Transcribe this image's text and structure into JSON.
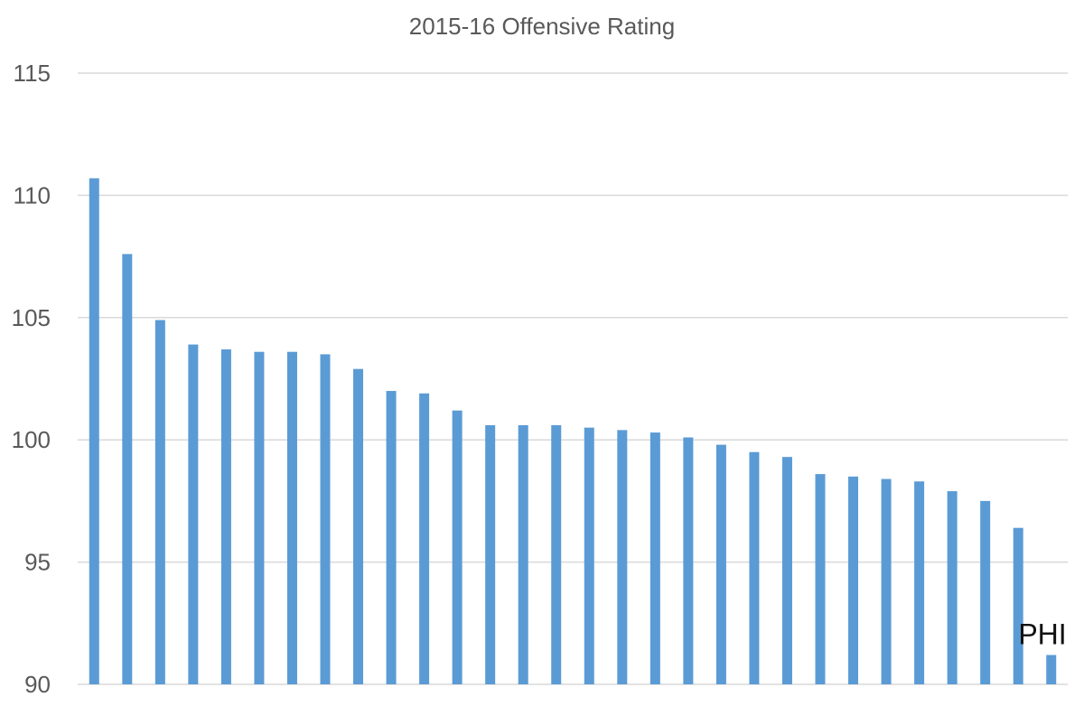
{
  "chart_data": {
    "type": "bar",
    "title": "2015-16 Offensive Rating",
    "xlabel": "",
    "ylabel": "",
    "ylim": [
      90,
      115
    ],
    "yticks": [
      90,
      95,
      100,
      105,
      110,
      115
    ],
    "grid": true,
    "legend": "none",
    "bar_color": "#5b9bd5",
    "values": [
      110.7,
      107.6,
      104.9,
      103.9,
      103.7,
      103.6,
      103.6,
      103.5,
      102.9,
      102.0,
      101.9,
      101.2,
      100.6,
      100.6,
      100.6,
      100.5,
      100.4,
      100.3,
      100.1,
      99.8,
      99.5,
      99.3,
      98.6,
      98.5,
      98.4,
      98.3,
      97.9,
      97.5,
      96.4,
      91.2
    ],
    "annotations": [
      {
        "index": 29,
        "text": "PHI"
      }
    ]
  }
}
